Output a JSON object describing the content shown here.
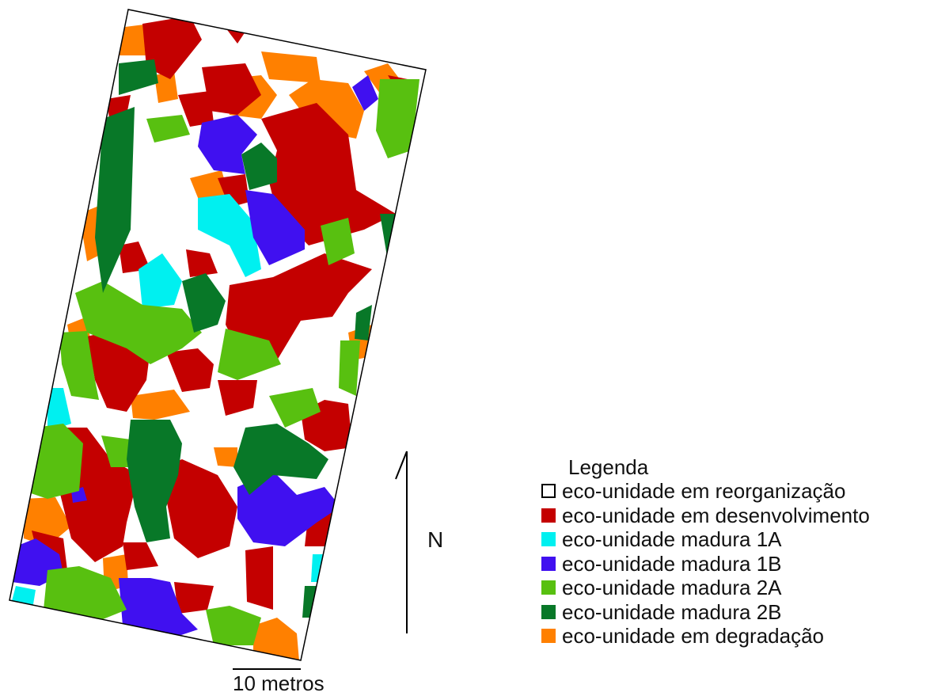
{
  "legend": {
    "title": "Legenda",
    "items": [
      {
        "key": "reorganizacao",
        "label": "eco-unidade em reorganização",
        "color": "#ffffff",
        "outline": "#000000"
      },
      {
        "key": "desenvolvimento",
        "label": "eco-unidade em desenvolvimento",
        "color": "#c40000"
      },
      {
        "key": "madura1a",
        "label": "eco-unidade madura 1A",
        "color": "#00f0f0"
      },
      {
        "key": "madura1b",
        "label": "eco-unidade madura 1B",
        "color": "#4010f0"
      },
      {
        "key": "madura2a",
        "label": "eco-unidade madura 2A",
        "color": "#58c010"
      },
      {
        "key": "madura2b",
        "label": "eco-unidade madura 2B",
        "color": "#087828"
      },
      {
        "key": "degradacao",
        "label": "eco-unidade em degradação",
        "color": "#ff8000"
      }
    ]
  },
  "north": {
    "label": "N"
  },
  "scale": {
    "label": "10 metros"
  }
}
